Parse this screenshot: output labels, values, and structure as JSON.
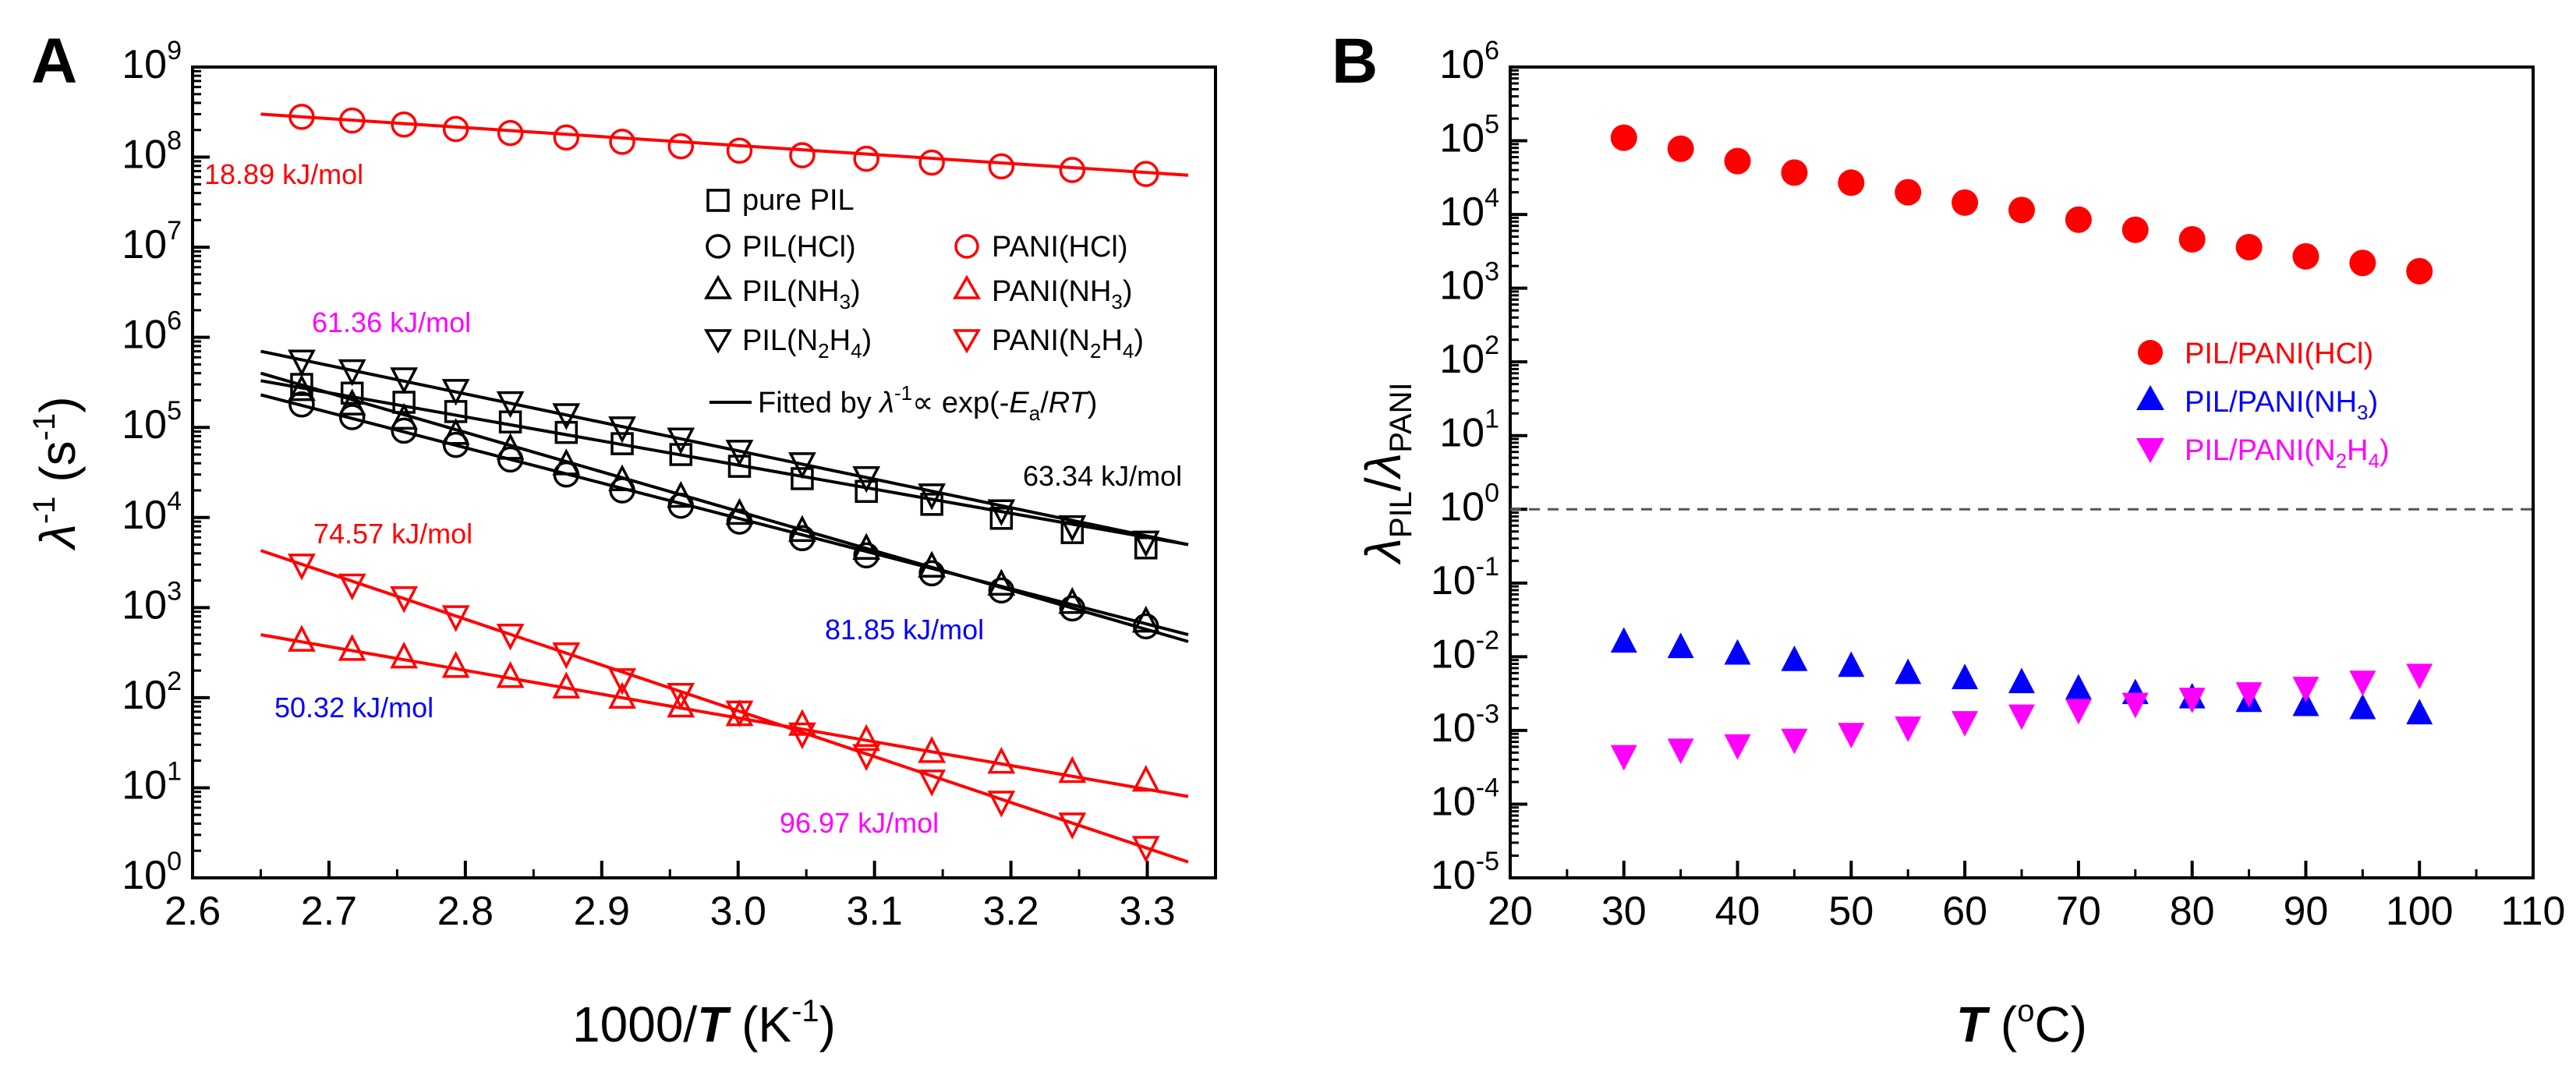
{
  "colors": {
    "black": "#000000",
    "red": "#ff0000",
    "blue": "#0000ff",
    "magenta": "#ff00ff",
    "dash": "#555555"
  },
  "chart_data": [
    {
      "panel_label": "A",
      "type": "scatter",
      "scale": "log-y",
      "xlabel_prefix": "1000/",
      "xlabel_var": "T",
      "xlabel_unit_open": " (K",
      "xlabel_unit_exp": "-1",
      "xlabel_unit_close": ")",
      "ylabel_var": "λ",
      "ylabel_exp": "-1",
      "ylabel_unit": " (s",
      "ylabel_unit_exp": "-1",
      "ylabel_close": ")",
      "xlim": [
        2.6,
        3.35
      ],
      "ylim_exp": [
        0,
        9
      ],
      "xticks": [
        "2.6",
        "2.7",
        "2.8",
        "2.9",
        "3.0",
        "3.1",
        "3.2",
        "3.3"
      ],
      "yticks": [
        "0",
        "1",
        "2",
        "3",
        "4",
        "5",
        "6",
        "7",
        "8",
        "9"
      ],
      "ytick_base": "10",
      "x": [
        2.68,
        2.717,
        2.755,
        2.793,
        2.833,
        2.874,
        2.915,
        2.958,
        3.001,
        3.047,
        3.094,
        3.142,
        3.193,
        3.245,
        3.299
      ],
      "series": [
        {
          "name": "pure PIL",
          "marker": "square",
          "color": "black",
          "ea_kjmol": 63.34,
          "values": [
            300000,
            240000,
            190000,
            150000,
            115000,
            88000,
            66000,
            50000,
            37000,
            27000,
            19500,
            14000,
            9800,
            6800,
            4600
          ],
          "fit": [
            2.65,
            330000,
            3.33,
            5000
          ]
        },
        {
          "name": "PIL(HCl)",
          "marker": "circle",
          "color": "black",
          "ea_kjmol": 81.85,
          "values": [
            180000,
            130000,
            92000,
            64000,
            44000,
            30000,
            20000,
            13500,
            9000,
            5900,
            3800,
            2400,
            1550,
            980,
            620
          ],
          "fit": [
            2.65,
            230000,
            3.33,
            500
          ]
        },
        {
          "name": "PIL(NH3)",
          "marker": "triangle-up",
          "color": "black",
          "ea_kjmol": null,
          "values": [
            260000,
            180000,
            125000,
            85000,
            58000,
            39000,
            26000,
            17000,
            11000,
            7100,
            4500,
            2850,
            1800,
            1130,
            700
          ],
          "fit": [
            2.65,
            400000,
            3.33,
            420
          ]
        },
        {
          "name": "PIL(N2H4)",
          "marker": "triangle-down",
          "color": "black",
          "ea_kjmol": null,
          "values": [
            550000,
            430000,
            350000,
            260000,
            190000,
            140000,
            100000,
            75000,
            55000,
            40000,
            28000,
            18000,
            12000,
            8000,
            5400
          ],
          "fit": [
            2.65,
            700000,
            3.33,
            5000
          ]
        },
        {
          "name": "PANI(HCl)",
          "marker": "circle",
          "color": "red",
          "ea_kjmol": 18.89,
          "values": [
            280000000,
            255000000,
            230000000,
            205000000,
            185000000,
            165000000,
            148000000,
            132000000,
            118000000,
            105000000,
            96000000,
            87000000,
            79000000,
            72000000,
            65000000
          ],
          "fit": [
            2.65,
            300000000,
            3.33,
            63000000
          ]
        },
        {
          "name": "PANI(NH3)",
          "marker": "triangle-up",
          "color": "red",
          "ea_kjmol": 50.32,
          "values": [
            430,
            340,
            280,
            220,
            170,
            130,
            100,
            80,
            64,
            50,
            34,
            25,
            19,
            15,
            12
          ],
          "fit": [
            2.65,
            500,
            3.33,
            8
          ]
        },
        {
          "name": "PANI(N2H4)",
          "marker": "triangle-down",
          "color": "red",
          "ea_kjmol": 96.97,
          "values": [
            3000,
            1800,
            1300,
            800,
            500,
            310,
            160,
            110,
            70,
            40,
            23,
            12,
            7,
            4,
            2.2
          ],
          "fit": [
            2.65,
            4300,
            3.33,
            1.5
          ]
        }
      ],
      "legend_left": [
        {
          "label": "pure PIL",
          "marker": "square",
          "color": "black"
        },
        {
          "label_main": "PIL(HCl)",
          "label_sub": "",
          "label_tail": "",
          "marker": "circle",
          "color": "black"
        },
        {
          "label_main": "PIL(NH",
          "label_sub": "3",
          "label_tail": ")",
          "marker": "triangle-up",
          "color": "black"
        },
        {
          "label_main": "PIL(N",
          "label_sub": "2",
          "label_mid": "H",
          "label_sub2": "4",
          "label_tail": ")",
          "marker": "triangle-down",
          "color": "black"
        }
      ],
      "legend_right": [
        {
          "label_main": "PANI(HCl)",
          "marker": "circle",
          "color": "red"
        },
        {
          "label_main": "PANI(NH",
          "label_sub": "3",
          "label_tail": ")",
          "marker": "triangle-up",
          "color": "red"
        },
        {
          "label_main": "PANI(N",
          "label_sub": "2",
          "label_mid": "H",
          "label_sub2": "4",
          "label_tail": ")",
          "marker": "triangle-down",
          "color": "red"
        }
      ],
      "fit_legend": {
        "prefix": "Fitted by ",
        "var": "λ",
        "exp": "-1",
        "mid": "∝ exp(-",
        "ea": "E",
        "ea_sub": "a",
        "slash": "/",
        "rt": "RT",
        "tail": ")"
      },
      "annotations": [
        {
          "text": "18.89 kJ/mol",
          "color": "red"
        },
        {
          "text": "61.36 kJ/mol",
          "color": "magenta"
        },
        {
          "text": "63.34 kJ/mol",
          "color": "black"
        },
        {
          "text": "74.57 kJ/mol",
          "color": "red"
        },
        {
          "text": "81.85 kJ/mol",
          "color": "blue"
        },
        {
          "text": "50.32 kJ/mol",
          "color": "blue"
        },
        {
          "text": "96.97 kJ/mol",
          "color": "magenta"
        }
      ]
    },
    {
      "panel_label": "B",
      "type": "scatter",
      "scale": "log-y",
      "xlabel_var": "T",
      "xlabel_unit": " (",
      "xlabel_deg": "o",
      "xlabel_tail": "C)",
      "ylabel_num": "λ",
      "ylabel_num_sub": "PIL",
      "ylabel_slash": "/",
      "ylabel_den": "λ",
      "ylabel_den_sub": "PANI",
      "xlim": [
        20,
        110
      ],
      "ylim_exp": [
        -5,
        6
      ],
      "xticks": [
        "20",
        "30",
        "40",
        "50",
        "60",
        "70",
        "80",
        "90",
        "100",
        "110"
      ],
      "yticks": [
        "-5",
        "-4",
        "-3",
        "-2",
        "-1",
        "0",
        "1",
        "2",
        "3",
        "4",
        "5",
        "6"
      ],
      "ytick_base": "10",
      "reference_line": 1,
      "x": [
        30,
        35,
        40,
        45,
        50,
        55,
        60,
        65,
        70,
        75,
        80,
        85,
        90,
        95,
        100
      ],
      "series": [
        {
          "name": "PIL/PANI(HCl)",
          "marker": "filled-circle",
          "color": "red",
          "values": [
            110000,
            78000,
            53000,
            37000,
            27000,
            20000,
            14500,
            11500,
            8500,
            6200,
            4600,
            3600,
            2700,
            2200,
            1700
          ]
        },
        {
          "name": "PIL/PANI(NH3)",
          "marker": "filled-triangle-up",
          "color": "blue",
          "values": [
            0.016,
            0.0135,
            0.011,
            0.009,
            0.0075,
            0.006,
            0.0051,
            0.0045,
            0.0037,
            0.0032,
            0.0028,
            0.0025,
            0.0022,
            0.002,
            0.0017
          ]
        },
        {
          "name": "PIL/PANI(N2H4)",
          "marker": "filled-triangle-down",
          "color": "magenta",
          "values": [
            0.00045,
            0.00055,
            0.00063,
            0.00075,
            0.0009,
            0.0011,
            0.0013,
            0.0016,
            0.0019,
            0.0023,
            0.0027,
            0.0032,
            0.0038,
            0.0046,
            0.0057
          ]
        }
      ],
      "legend": [
        {
          "label_main": "PIL/PANI(HCl)",
          "marker": "filled-circle",
          "color": "red"
        },
        {
          "label_main": "PIL/PANI(NH",
          "label_sub": "3",
          "label_tail": ")",
          "marker": "filled-triangle-up",
          "color": "blue"
        },
        {
          "label_main": "PIL/PANI(N",
          "label_sub": "2",
          "label_mid": "H",
          "label_sub2": "4",
          "label_tail": ")",
          "marker": "filled-triangle-down",
          "color": "magenta"
        }
      ]
    }
  ]
}
